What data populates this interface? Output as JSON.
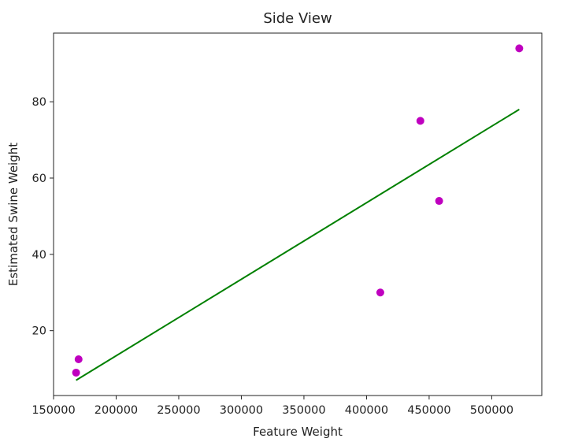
{
  "chart_data": {
    "type": "scatter",
    "title": "Side View",
    "xlabel": "Feature Weight",
    "ylabel": "Estimated Swine Weight",
    "xlim": [
      150000,
      540000
    ],
    "ylim": [
      3,
      98
    ],
    "xticks": [
      150000,
      200000,
      250000,
      300000,
      350000,
      400000,
      450000,
      500000
    ],
    "xtick_labels": [
      "150000",
      "200000",
      "250000",
      "300000",
      "350000",
      "400000",
      "450000",
      "500000"
    ],
    "yticks": [
      20,
      40,
      60,
      80
    ],
    "ytick_labels": [
      "20",
      "40",
      "60",
      "80"
    ],
    "grid": false,
    "series": [
      {
        "kind": "points",
        "color": "#bf00bf",
        "x": [
          168000,
          170000,
          411000,
          443000,
          458000,
          522000
        ],
        "y": [
          9,
          12.5,
          30,
          75,
          54,
          94
        ]
      },
      {
        "kind": "line",
        "color": "#008000",
        "x": [
          168000,
          522000
        ],
        "y": [
          7,
          78
        ]
      }
    ]
  }
}
